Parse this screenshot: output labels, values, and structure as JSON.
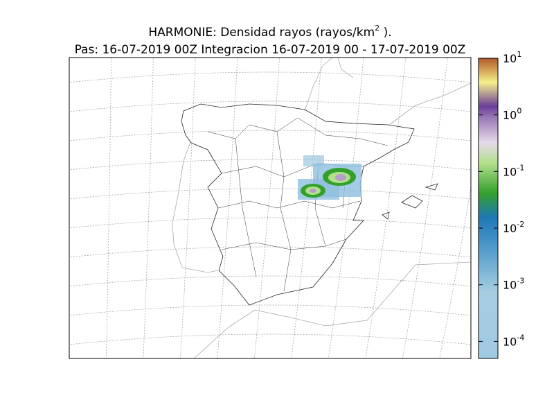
{
  "title": {
    "parts": [
      "HARMONIE: Densidad rayos  (rayos/km",
      "2",
      " )."
    ],
    "subtitle": "Pas: 16-07-2019 00Z Integracion 16-07-2019 00 - 17-07-2019 00Z"
  },
  "colorbar": {
    "scale": "log",
    "lim": [
      5e-05,
      10
    ],
    "ticks": [
      {
        "value": 10,
        "base": "10",
        "exponent": "1"
      },
      {
        "value": 1,
        "base": "10",
        "exponent": "0"
      },
      {
        "value": 0.1,
        "base": "10",
        "exponent": "-1"
      },
      {
        "value": 0.01,
        "base": "10",
        "exponent": "-2"
      },
      {
        "value": 0.001,
        "base": "10",
        "exponent": "-3"
      },
      {
        "value": 0.0001,
        "base": "10",
        "exponent": "-4"
      }
    ]
  }
}
